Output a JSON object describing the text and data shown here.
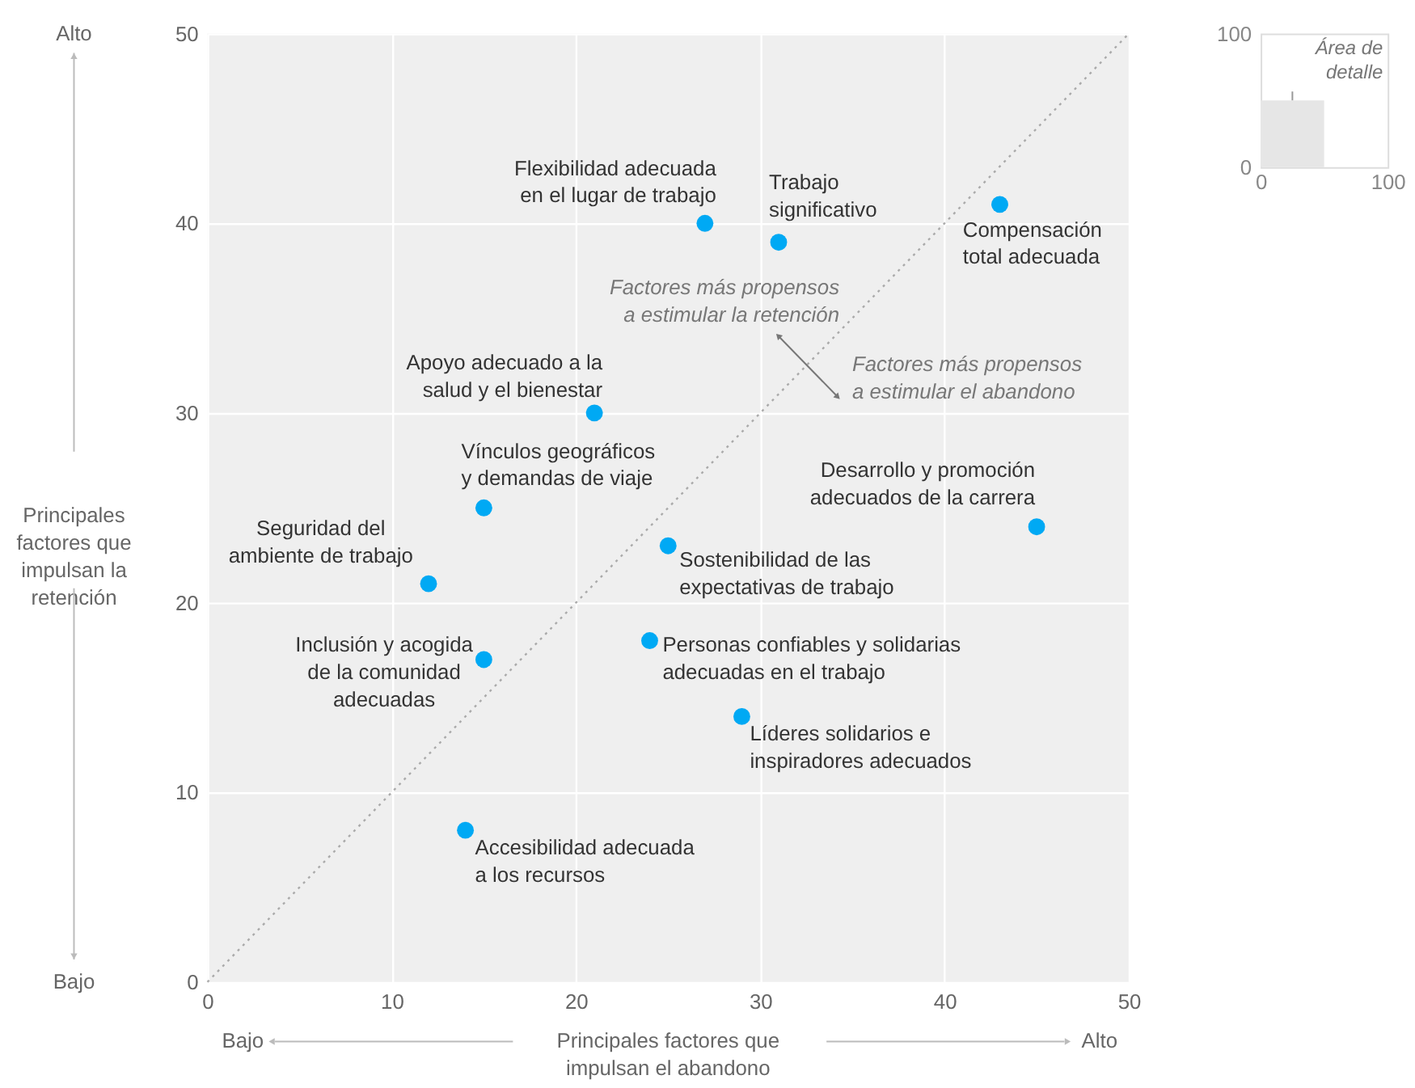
{
  "chart_data": [
    {
      "type": "scatter",
      "xlabel": "Principales factores que\nimpulsan el abandono",
      "ylabel": "Principales\nfactores que\nimpulsan la\nretención",
      "xlim": [
        0,
        50
      ],
      "ylim": [
        0,
        50
      ],
      "xticks": [
        0,
        10,
        20,
        30,
        40,
        50
      ],
      "yticks": [
        0,
        10,
        20,
        30,
        40,
        50
      ],
      "grid": true,
      "marker": "circle",
      "series": [
        {
          "name": "Flexibilidad adecuada\nen el lugar de trabajo",
          "color": "#00a9f4",
          "x": [
            27
          ],
          "values": [
            40
          ]
        },
        {
          "name": "Trabajo\nsignificativo",
          "color": "#00a9f4",
          "x": [
            31
          ],
          "values": [
            39
          ]
        },
        {
          "name": "Compensación\ntotal adecuada",
          "color": "#00a9f4",
          "x": [
            43
          ],
          "values": [
            41
          ]
        },
        {
          "name": "Apoyo adecuado a la\nsalud y el bienestar",
          "color": "#00a9f4",
          "x": [
            21
          ],
          "values": [
            30
          ]
        },
        {
          "name": "Vínculos geográficos\ny demandas de viaje",
          "color": "#00a9f4",
          "x": [
            15
          ],
          "values": [
            25
          ]
        },
        {
          "name": "Seguridad del\nambiente de trabajo",
          "color": "#00a9f4",
          "x": [
            12
          ],
          "values": [
            21
          ]
        },
        {
          "name": "Inclusión y acogida\nde la comunidad\nadecuadas",
          "color": "#00a9f4",
          "x": [
            15
          ],
          "values": [
            17
          ]
        },
        {
          "name": "Accesibilidad adecuada\na los recursos",
          "color": "#00a9f4",
          "x": [
            14
          ],
          "values": [
            8
          ]
        },
        {
          "name": "Sostenibilidad de las\nexpectativas de trabajo",
          "color": "#00a9f4",
          "x": [
            25
          ],
          "values": [
            23
          ]
        },
        {
          "name": "Personas confiables y solidarias\nadecuadas en el trabajo",
          "color": "#00a9f4",
          "x": [
            24
          ],
          "values": [
            18
          ]
        },
        {
          "name": "Líderes solidarios e\ninspiradores adecuados",
          "color": "#00a9f4",
          "x": [
            29
          ],
          "values": [
            14
          ]
        },
        {
          "name": "Desarrollo y promoción\nadecuados de la carrera",
          "color": "#00a9f4",
          "x": [
            45
          ],
          "values": [
            24
          ]
        },
        {
          "type": "line",
          "color": "#aaaaaa",
          "line_style": "dotted",
          "marker": "none",
          "x": [
            0,
            50
          ],
          "values": [
            0,
            50
          ]
        }
      ],
      "annotations": [
        "Factores más propensos\na estimular la retención",
        "Factores más propensos\na estimular el abandono",
        "Alto",
        "Bajo",
        "Bajo",
        "Alto"
      ]
    },
    {
      "type": "histogram",
      "xlim": [
        0,
        100
      ],
      "ylim": [
        0,
        100
      ],
      "xticks": [
        0,
        100
      ],
      "yticks": [
        0,
        100
      ],
      "bins": [
        0,
        50
      ],
      "values": [
        50
      ],
      "color": "#e6e6e6",
      "annotations": [
        {
          "text": "Área de\ndetalle",
          "x": 25,
          "y": 50
        }
      ]
    }
  ]
}
